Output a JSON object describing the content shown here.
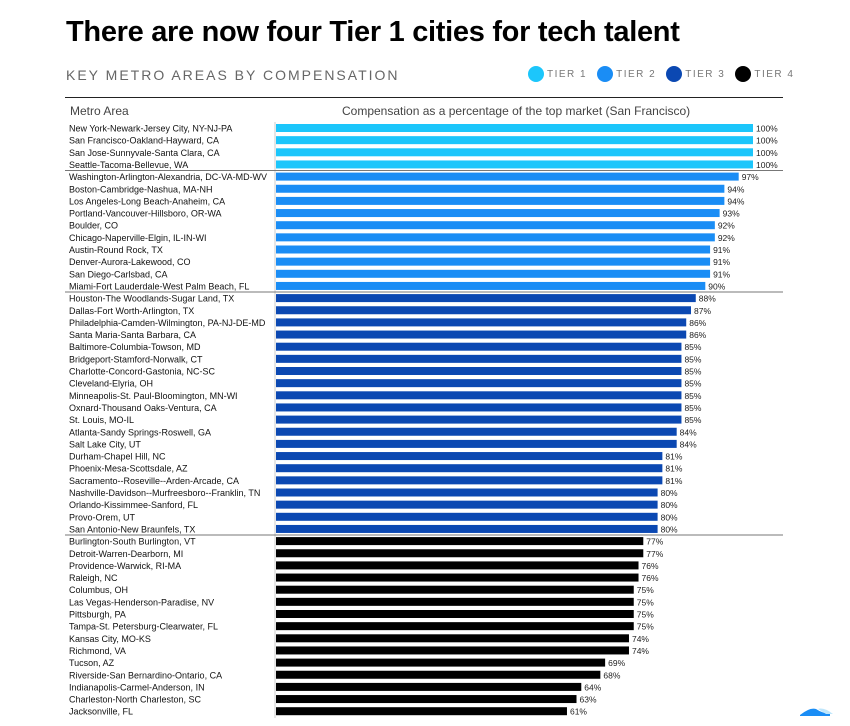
{
  "title": "There are now four Tier 1 cities for tech talent",
  "subtitle": "KEY METRO AREAS BY COMPENSATION",
  "legend": [
    {
      "label": "TIER 1",
      "color": "#1cc6fb"
    },
    {
      "label": "TIER 2",
      "color": "#1a8df5"
    },
    {
      "label": "TIER 3",
      "color": "#0b48b2"
    },
    {
      "label": "TIER 4",
      "color": "#000000"
    }
  ],
  "column_headers": {
    "left": "Metro Area",
    "right": "Compensation as a percentage of the top market (San Francisco)"
  },
  "chart_data": {
    "type": "bar",
    "orientation": "horizontal",
    "xlabel": "Compensation as a percentage of the top market (San Francisco)",
    "ylabel": "Metro Area",
    "xlim": [
      0,
      100
    ],
    "grid": false,
    "legend_position": "top-right",
    "categories": [
      "New York-Newark-Jersey City, NY-NJ-PA",
      "San Francisco-Oakland-Hayward, CA",
      "San Jose-Sunnyvale-Santa Clara, CA",
      "Seattle-Tacoma-Bellevue, WA",
      "Washington-Arlington-Alexandria, DC-VA-MD-WV",
      "Boston-Cambridge-Nashua, MA-NH",
      "Los Angeles-Long Beach-Anaheim, CA",
      "Portland-Vancouver-Hillsboro, OR-WA",
      "Boulder, CO",
      "Chicago-Naperville-Elgin, IL-IN-WI",
      "Austin-Round Rock, TX",
      "Denver-Aurora-Lakewood, CO",
      "San Diego-Carlsbad, CA",
      "Miami-Fort Lauderdale-West Palm Beach, FL",
      "Houston-The Woodlands-Sugar Land, TX",
      "Dallas-Fort Worth-Arlington, TX",
      "Philadelphia-Camden-Wilmington, PA-NJ-DE-MD",
      "Santa Maria-Santa Barbara, CA",
      "Baltimore-Columbia-Towson, MD",
      "Bridgeport-Stamford-Norwalk, CT",
      "Charlotte-Concord-Gastonia, NC-SC",
      "Cleveland-Elyria, OH",
      "Minneapolis-St. Paul-Bloomington, MN-WI",
      "Oxnard-Thousand Oaks-Ventura, CA",
      "St. Louis, MO-IL",
      "Atlanta-Sandy Springs-Roswell, GA",
      "Salt Lake City, UT",
      "Durham-Chapel Hill, NC",
      "Phoenix-Mesa-Scottsdale, AZ",
      "Sacramento--Roseville--Arden-Arcade, CA",
      "Nashville-Davidson--Murfreesboro--Franklin, TN",
      "Orlando-Kissimmee-Sanford, FL",
      "Provo-Orem, UT",
      "San Antonio-New Braunfels, TX",
      "Burlington-South Burlington, VT",
      "Detroit-Warren-Dearborn, MI",
      "Providence-Warwick, RI-MA",
      "Raleigh, NC",
      "Columbus, OH",
      "Las Vegas-Henderson-Paradise, NV",
      "Pittsburgh, PA",
      "Tampa-St. Petersburg-Clearwater, FL",
      "Kansas City, MO-KS",
      "Richmond, VA",
      "Tucson, AZ",
      "Riverside-San Bernardino-Ontario, CA",
      "Indianapolis-Carmel-Anderson, IN",
      "Charleston-North Charleston, SC",
      "Jacksonville, FL"
    ],
    "values": [
      100,
      100,
      100,
      100,
      97,
      94,
      94,
      93,
      92,
      92,
      91,
      91,
      91,
      90,
      88,
      87,
      86,
      86,
      85,
      85,
      85,
      85,
      85,
      85,
      85,
      84,
      84,
      81,
      81,
      81,
      80,
      80,
      80,
      80,
      77,
      77,
      76,
      76,
      75,
      75,
      75,
      75,
      74,
      74,
      69,
      68,
      64,
      63,
      61
    ],
    "tiers": [
      1,
      1,
      1,
      1,
      2,
      2,
      2,
      2,
      2,
      2,
      2,
      2,
      2,
      2,
      3,
      3,
      3,
      3,
      3,
      3,
      3,
      3,
      3,
      3,
      3,
      3,
      3,
      3,
      3,
      3,
      3,
      3,
      3,
      3,
      4,
      4,
      4,
      4,
      4,
      4,
      4,
      4,
      4,
      4,
      4,
      4,
      4,
      4,
      4
    ],
    "value_suffix": "%"
  }
}
